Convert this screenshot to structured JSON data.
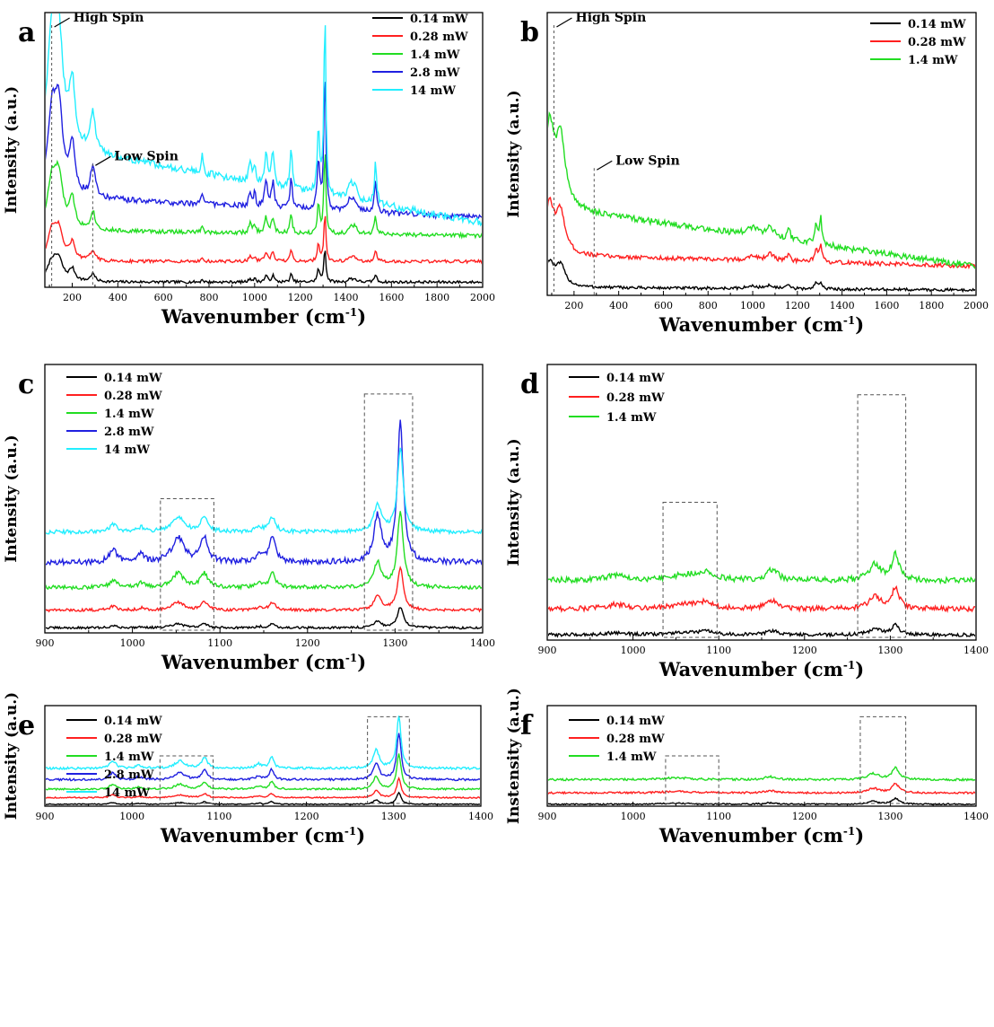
{
  "figure": {
    "series_names": [
      "0.14 mW",
      "0.28 mW",
      "1.4 mW",
      "2.8 mW",
      "14 mW"
    ],
    "series_colors": [
      "#000000",
      "#ff2020",
      "#22dd22",
      "#2020e0",
      "#22eeff"
    ],
    "y_title": "Intensity (a.u.)",
    "x_title_main": "Wavenumber (cm",
    "x_title_sup": "-1",
    "x_title_end": ")"
  },
  "chart_data": [
    {
      "panel": "a",
      "type": "line",
      "xlabel": "Wavenumber (cm-1)",
      "ylabel": "Intensity (a.u.)",
      "xlim": [
        80,
        2000
      ],
      "ylim": [
        0,
        100
      ],
      "xticks": [
        200,
        400,
        600,
        800,
        1000,
        1200,
        1400,
        1600,
        1800,
        2000
      ],
      "legend": "top-right",
      "series": [
        {
          "name": "0.14 mW",
          "baseline": 2,
          "slope": 0,
          "scale": 0.25
        },
        {
          "name": "0.28 mW",
          "baseline": 10,
          "slope": 0,
          "scale": 0.35
        },
        {
          "name": "1.4 mW",
          "baseline": 22,
          "slope": -2,
          "scale": 0.6
        },
        {
          "name": "2.8 mW",
          "baseline": 35,
          "slope": -8,
          "scale": 1.0
        },
        {
          "name": "14 mW",
          "baseline": 55,
          "slope": -30,
          "scale": 1.3
        }
      ],
      "peaks": [
        [
          110,
          28,
          22
        ],
        [
          140,
          32,
          22
        ],
        [
          200,
          18,
          15
        ],
        [
          290,
          12,
          12
        ],
        [
          770,
          5,
          4
        ],
        [
          980,
          6,
          6
        ],
        [
          1000,
          5,
          6
        ],
        [
          1050,
          10,
          7
        ],
        [
          1080,
          10,
          7
        ],
        [
          1160,
          12,
          6
        ],
        [
          1280,
          20,
          6
        ],
        [
          1308,
          55,
          5
        ],
        [
          1420,
          5,
          10
        ],
        [
          1440,
          4,
          10
        ],
        [
          1530,
          12,
          6
        ]
      ],
      "annotations": [
        {
          "text": "High Spin",
          "x": 110
        },
        {
          "text": "Low Spin",
          "x": 290
        }
      ]
    },
    {
      "panel": "b",
      "type": "line",
      "xlabel": "Wavenumber (cm-1)",
      "ylabel": "Intensity (a.u.)",
      "xlim": [
        80,
        2000
      ],
      "ylim": [
        0,
        100
      ],
      "xticks": [
        200,
        400,
        600,
        800,
        1000,
        1200,
        1400,
        1600,
        1800,
        2000
      ],
      "legend": "top-right",
      "series": [
        {
          "name": "0.14 mW",
          "baseline": 3,
          "slope": -1,
          "scale": 0.3
        },
        {
          "name": "0.28 mW",
          "baseline": 15,
          "slope": -4,
          "scale": 0.6
        },
        {
          "name": "1.4 mW",
          "baseline": 33,
          "slope": -22,
          "scale": 1.0
        }
      ],
      "peaks": [
        [
          90,
          30,
          25
        ],
        [
          140,
          25,
          25
        ],
        [
          1000,
          3,
          30
        ],
        [
          1080,
          4,
          20
        ],
        [
          1160,
          5,
          8
        ],
        [
          1285,
          7,
          10
        ],
        [
          1305,
          9,
          6
        ]
      ],
      "annotations": [
        {
          "text": "High Spin",
          "x": 110
        },
        {
          "text": "Low Spin",
          "x": 290
        }
      ]
    },
    {
      "panel": "c",
      "type": "line",
      "xlabel": "Wavenumber (cm-1)",
      "ylabel": "Intensity (a.u.)",
      "xlim": [
        900,
        1400
      ],
      "ylim": [
        0,
        100
      ],
      "xticks": [
        900,
        1000,
        1100,
        1200,
        1300,
        1400
      ],
      "legend": "top-left",
      "series": [
        {
          "name": "0.14 mW",
          "baseline": 2,
          "slope": 0,
          "scale": 0.15
        },
        {
          "name": "0.28 mW",
          "baseline": 9,
          "slope": 0,
          "scale": 0.3
        },
        {
          "name": "1.4 mW",
          "baseline": 18,
          "slope": 0,
          "scale": 0.55
        },
        {
          "name": "2.8 mW",
          "baseline": 28,
          "slope": 0,
          "scale": 1.0
        },
        {
          "name": "14 mW",
          "baseline": 40,
          "slope": 0,
          "scale": 0.6
        }
      ],
      "peaks": [
        [
          978,
          5,
          5
        ],
        [
          1010,
          3,
          4
        ],
        [
          1052,
          10,
          8
        ],
        [
          1082,
          10,
          5
        ],
        [
          1145,
          3,
          5
        ],
        [
          1160,
          10,
          4
        ],
        [
          1280,
          18,
          5
        ],
        [
          1306,
          55,
          4
        ]
      ],
      "boxes": [
        [
          1032,
          1093
        ],
        [
          1265,
          1320
        ]
      ]
    },
    {
      "panel": "d",
      "type": "line",
      "xlabel": "Wavenumber (cm-1)",
      "ylabel": "Intensity (a.u.)",
      "xlim": [
        900,
        1400
      ],
      "ylim": [
        0,
        100
      ],
      "xticks": [
        900,
        1000,
        1100,
        1200,
        1300,
        1400
      ],
      "legend": "top-left",
      "series": [
        {
          "name": "0.14 mW",
          "baseline": 2,
          "slope": 0,
          "scale": 0.4
        },
        {
          "name": "0.28 mW",
          "baseline": 12,
          "slope": 0,
          "scale": 0.8
        },
        {
          "name": "1.4 mW",
          "baseline": 23,
          "slope": 0,
          "scale": 1.0
        }
      ],
      "peaks": [
        [
          980,
          2,
          15
        ],
        [
          1060,
          2,
          20
        ],
        [
          1085,
          3,
          10
        ],
        [
          1162,
          4,
          8
        ],
        [
          1282,
          6,
          8
        ],
        [
          1306,
          10,
          5
        ]
      ],
      "boxes": [
        [
          1035,
          1098
        ],
        [
          1262,
          1318
        ]
      ]
    },
    {
      "panel": "e",
      "type": "line",
      "xlabel": "Wavenumber (cm-1)",
      "ylabel": "Intensity (a.u.)",
      "xlim": [
        900,
        1400
      ],
      "ylim": [
        0,
        100
      ],
      "xticks": [
        900,
        1000,
        1100,
        1200,
        1300,
        1400
      ],
      "legend": "top-left",
      "series": [
        {
          "name": "0.14 mW",
          "baseline": 2,
          "slope": 0,
          "scale": 0.25
        },
        {
          "name": "0.28 mW",
          "baseline": 9,
          "slope": 0,
          "scale": 0.4
        },
        {
          "name": "1.4 mW",
          "baseline": 18,
          "slope": 0,
          "scale": 0.75
        },
        {
          "name": "2.8 mW",
          "baseline": 28,
          "slope": 0,
          "scale": 1.0
        },
        {
          "name": "14 mW",
          "baseline": 40,
          "slope": 0,
          "scale": 1.1
        }
      ],
      "peaks": [
        [
          978,
          7,
          4
        ],
        [
          1008,
          3,
          4
        ],
        [
          1055,
          7,
          7
        ],
        [
          1083,
          10,
          4
        ],
        [
          1145,
          4,
          4
        ],
        [
          1160,
          11,
          3
        ],
        [
          1280,
          18,
          4
        ],
        [
          1306,
          50,
          3
        ]
      ],
      "boxes": [
        [
          1032,
          1093
        ],
        [
          1270,
          1318
        ]
      ]
    },
    {
      "panel": "f",
      "type": "line",
      "xlabel": "Wavenumber (cm-1)",
      "ylabel": "Instensity (a.u.)",
      "xlim": [
        900,
        1400
      ],
      "ylim": [
        0,
        100
      ],
      "xticks": [
        900,
        1000,
        1100,
        1200,
        1300,
        1400
      ],
      "legend": "top-left",
      "series": [
        {
          "name": "0.14 mW",
          "baseline": 2,
          "slope": 0,
          "scale": 0.5
        },
        {
          "name": "0.28 mW",
          "baseline": 14,
          "slope": 0,
          "scale": 0.8
        },
        {
          "name": "1.4 mW",
          "baseline": 28,
          "slope": 0,
          "scale": 1.0
        }
      ],
      "peaks": [
        [
          1050,
          2,
          20
        ],
        [
          1160,
          3,
          8
        ],
        [
          1280,
          6,
          8
        ],
        [
          1306,
          12,
          5
        ]
      ],
      "boxes": [
        [
          1038,
          1100
        ],
        [
          1265,
          1318
        ]
      ]
    }
  ]
}
